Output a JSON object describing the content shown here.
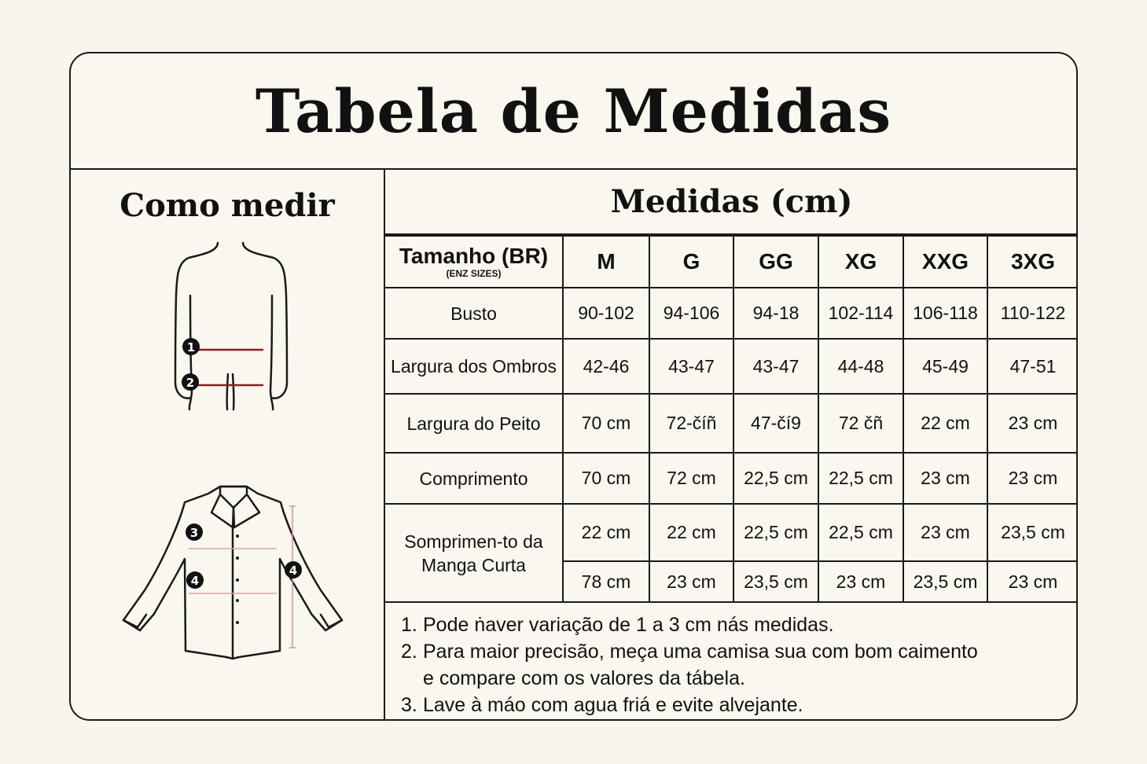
{
  "title": "Tabela de Medidas",
  "how_to_measure": {
    "title": "Como medir",
    "markers": [
      "1",
      "2",
      "3",
      "4",
      "4"
    ]
  },
  "measures": {
    "title": "Medidas (cm)",
    "header": {
      "label": "Tamanho (BR)",
      "sublabel": "(ENZ SIZES)",
      "sizes": [
        "M",
        "G",
        "GG",
        "XG",
        "XXG",
        "3XG"
      ]
    },
    "rows": [
      {
        "label": "Busto",
        "values": [
          "90-102",
          "94-106",
          "94-18",
          "102-114",
          "106-118",
          "110-122"
        ]
      },
      {
        "label": "Largura dos Ombros",
        "values": [
          "42-46",
          "43-47",
          "43-47",
          "44-48",
          "45-49",
          "47-51"
        ]
      },
      {
        "label": "Largura do Peito",
        "values": [
          "70 cm",
          "72-číñ",
          "47-čí9",
          "72 čñ",
          "22 cm",
          "23 cm"
        ]
      },
      {
        "label": "Comprimento",
        "values": [
          "70 cm",
          "72 cm",
          "22,5 cm",
          "22,5 cm",
          "23 cm",
          "23 cm"
        ]
      },
      {
        "label": "Somprimen-to da Manga Curta",
        "values": [
          "22 cm",
          "22 cm",
          "22,5 cm",
          "22,5 cm",
          "23 cm",
          "23,5 cm"
        ],
        "values2": [
          "78 cm",
          "23 cm",
          "23,5 cm",
          "23 cm",
          "23,5 cm",
          "23 cm"
        ]
      }
    ]
  },
  "notes": [
    {
      "num": "1.",
      "text": "Pode ṅaver variação de 1 a 3 cm nás medidas."
    },
    {
      "num": "2.",
      "text": "Para maior precisão, meça uma camisa sua com bom caimento e compare com os valores da tábela."
    },
    {
      "num": "3.",
      "text": "Lave à máo com agua friá e evite alvejante."
    }
  ]
}
